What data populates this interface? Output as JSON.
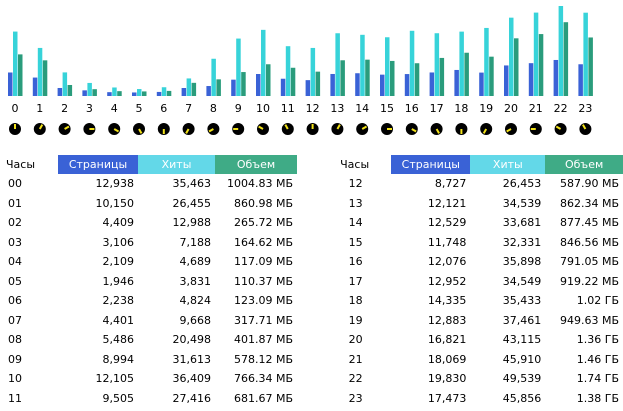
{
  "colors": {
    "pages": "#3a62d6",
    "hits": "#37d3d9",
    "volume": "#2a9c7c",
    "clock_face": "#000000",
    "clock_hand": "#f2e21a"
  },
  "chart_data": {
    "type": "bar",
    "categories": [
      "0",
      "1",
      "2",
      "3",
      "4",
      "5",
      "6",
      "7",
      "8",
      "9",
      "10",
      "11",
      "12",
      "13",
      "14",
      "15",
      "16",
      "17",
      "18",
      "19",
      "20",
      "21",
      "22",
      "23"
    ],
    "series": [
      {
        "name": "Страницы",
        "values": [
          12938,
          10150,
          4409,
          3106,
          2109,
          1946,
          2238,
          4401,
          5486,
          8994,
          12105,
          9505,
          8727,
          12121,
          12529,
          11748,
          12076,
          12952,
          14335,
          12883,
          16821,
          18069,
          19830,
          17473
        ]
      },
      {
        "name": "Хиты",
        "values": [
          35463,
          26455,
          12988,
          7188,
          4689,
          3831,
          4824,
          9668,
          20498,
          31613,
          36409,
          27416,
          26453,
          34539,
          33681,
          32331,
          35898,
          34549,
          35433,
          37461,
          43115,
          45910,
          49539,
          45856
        ]
      },
      {
        "name": "Объем",
        "values": [
          1004.83,
          860.98,
          265.72,
          164.62,
          117.09,
          110.37,
          123.09,
          317.71,
          401.87,
          578.12,
          766.34,
          681.67,
          587.9,
          862.34,
          877.45,
          846.56,
          791.05,
          919.22,
          1044.48,
          949.63,
          1392.64,
          1495.04,
          1781.76,
          1413.12
        ]
      }
    ],
    "ylim": [
      0,
      49539
    ]
  },
  "table": {
    "headers": {
      "hour": "Часы",
      "pages": "Страницы",
      "hits": "Хиты",
      "volume": "Объем"
    },
    "left": [
      {
        "hour": "00",
        "pages": "12,938",
        "hits": "35,463",
        "volume": "1004.83 МБ"
      },
      {
        "hour": "01",
        "pages": "10,150",
        "hits": "26,455",
        "volume": "860.98 МБ"
      },
      {
        "hour": "02",
        "pages": "4,409",
        "hits": "12,988",
        "volume": "265.72 МБ"
      },
      {
        "hour": "03",
        "pages": "3,106",
        "hits": "7,188",
        "volume": "164.62 МБ"
      },
      {
        "hour": "04",
        "pages": "2,109",
        "hits": "4,689",
        "volume": "117.09 МБ"
      },
      {
        "hour": "05",
        "pages": "1,946",
        "hits": "3,831",
        "volume": "110.37 МБ"
      },
      {
        "hour": "06",
        "pages": "2,238",
        "hits": "4,824",
        "volume": "123.09 МБ"
      },
      {
        "hour": "07",
        "pages": "4,401",
        "hits": "9,668",
        "volume": "317.71 МБ"
      },
      {
        "hour": "08",
        "pages": "5,486",
        "hits": "20,498",
        "volume": "401.87 МБ"
      },
      {
        "hour": "09",
        "pages": "8,994",
        "hits": "31,613",
        "volume": "578.12 МБ"
      },
      {
        "hour": "10",
        "pages": "12,105",
        "hits": "36,409",
        "volume": "766.34 МБ"
      },
      {
        "hour": "11",
        "pages": "9,505",
        "hits": "27,416",
        "volume": "681.67 МБ"
      }
    ],
    "right": [
      {
        "hour": "12",
        "pages": "8,727",
        "hits": "26,453",
        "volume": "587.90 МБ"
      },
      {
        "hour": "13",
        "pages": "12,121",
        "hits": "34,539",
        "volume": "862.34 МБ"
      },
      {
        "hour": "14",
        "pages": "12,529",
        "hits": "33,681",
        "volume": "877.45 МБ"
      },
      {
        "hour": "15",
        "pages": "11,748",
        "hits": "32,331",
        "volume": "846.56 МБ"
      },
      {
        "hour": "16",
        "pages": "12,076",
        "hits": "35,898",
        "volume": "791.05 МБ"
      },
      {
        "hour": "17",
        "pages": "12,952",
        "hits": "34,549",
        "volume": "919.22 МБ"
      },
      {
        "hour": "18",
        "pages": "14,335",
        "hits": "35,433",
        "volume": "1.02 ГБ"
      },
      {
        "hour": "19",
        "pages": "12,883",
        "hits": "37,461",
        "volume": "949.63 МБ"
      },
      {
        "hour": "20",
        "pages": "16,821",
        "hits": "43,115",
        "volume": "1.36 ГБ"
      },
      {
        "hour": "21",
        "pages": "18,069",
        "hits": "45,910",
        "volume": "1.46 ГБ"
      },
      {
        "hour": "22",
        "pages": "19,830",
        "hits": "49,539",
        "volume": "1.74 ГБ"
      },
      {
        "hour": "23",
        "pages": "17,473",
        "hits": "45,856",
        "volume": "1.38 ГБ"
      }
    ]
  }
}
